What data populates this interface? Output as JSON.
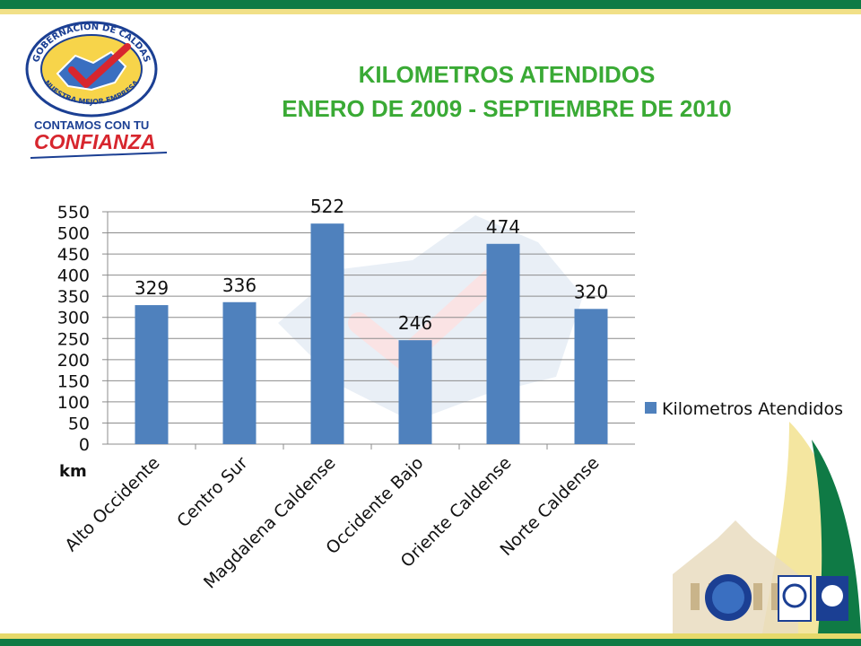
{
  "slide": {
    "title_line1": "KILOMETROS ATENDIDOS",
    "title_line2": "ENERO DE 2009 - SEPTIEMBRE DE 2010"
  },
  "logo": {
    "seal_top_text": "GOBERNACIÓN DE CALDAS",
    "seal_bottom_text": "NUESTRA MEJOR EMPRESA",
    "slogan_small": "CONTAMOS CON TU",
    "slogan_big": "CONFIANZA"
  },
  "colors": {
    "title": "#3aaa35",
    "bar": "#4f81bd",
    "band_green": "#0f7a45",
    "band_yellow": "#f1e088",
    "logo_red": "#d7262e",
    "logo_blue": "#1b3f93"
  },
  "chart_data": {
    "type": "bar",
    "categories": [
      "Alto Occidente",
      "Centro Sur",
      "Magdalena Caldense",
      "Occidente Bajo",
      "Oriente Caldense",
      "Norte Caldense"
    ],
    "series": [
      {
        "name": "Kilometros Atendidos",
        "values": [
          329,
          336,
          522,
          246,
          474,
          320
        ]
      }
    ],
    "unit_label": "km",
    "ylim": [
      0,
      550
    ],
    "yticks": [
      0,
      50,
      100,
      150,
      200,
      250,
      300,
      350,
      400,
      450,
      500,
      550
    ],
    "grid": true,
    "legend": "right"
  }
}
